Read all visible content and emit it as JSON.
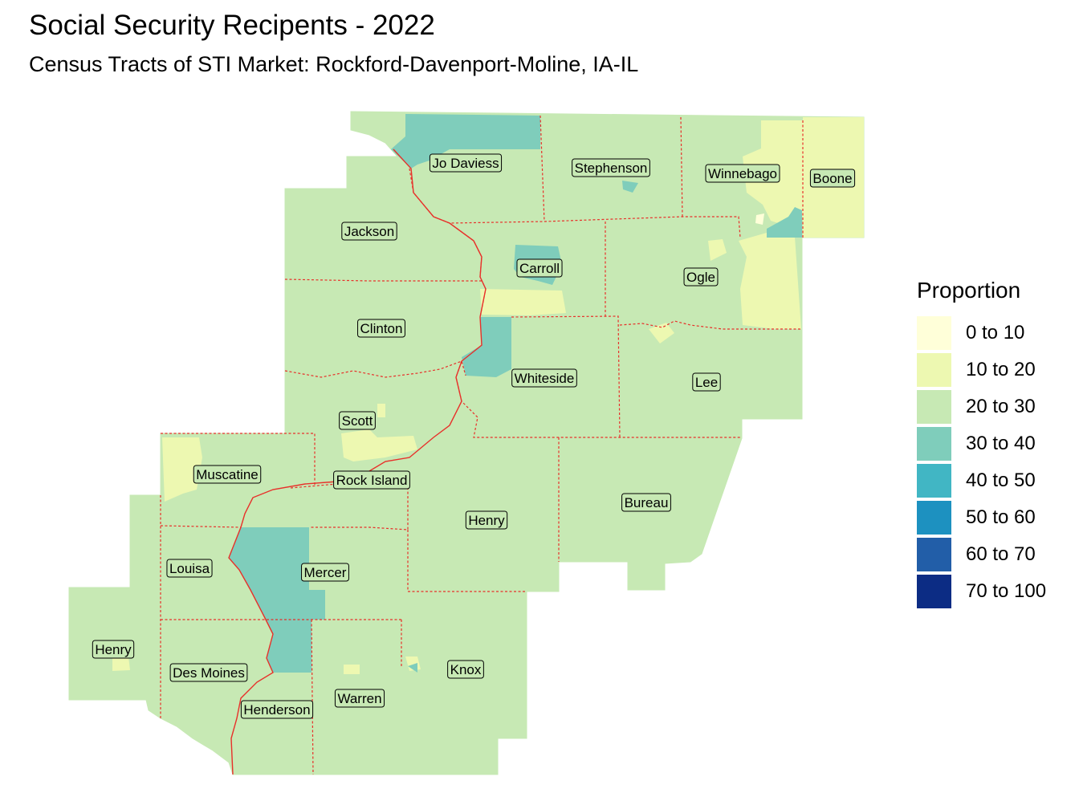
{
  "title": "Social Security Recipents - 2022",
  "subtitle": "Census Tracts of STI Market: Rockford-Davenport-Moline, IA-IL",
  "legend": {
    "title": "Proportion",
    "items": [
      {
        "label": "0 to 10",
        "color": "#ffffd9"
      },
      {
        "label": "10 to 20",
        "color": "#edf8b1"
      },
      {
        "label": "20 to 30",
        "color": "#c7e9b4"
      },
      {
        "label": "30 to 40",
        "color": "#7fcdbb"
      },
      {
        "label": "40 to 50",
        "color": "#41b6c4"
      },
      {
        "label": "50 to 60",
        "color": "#1d91c0"
      },
      {
        "label": "60 to 70",
        "color": "#225ea8"
      },
      {
        "label": "70 to 100",
        "color": "#0c2c84"
      }
    ]
  },
  "colors": {
    "county_border": "#e8302a",
    "label_box_fill": "#c7e9b4",
    "label_box_border": "#000000"
  },
  "counties": [
    {
      "name": "Jo Daviess",
      "class": "20 to 30"
    },
    {
      "name": "Stephenson",
      "class": "20 to 30"
    },
    {
      "name": "Winnebago",
      "class": "20 to 30"
    },
    {
      "name": "Boone",
      "class": "10 to 20"
    },
    {
      "name": "Jackson",
      "class": "20 to 30"
    },
    {
      "name": "Carroll",
      "class": "20 to 30"
    },
    {
      "name": "Ogle",
      "class": "20 to 30"
    },
    {
      "name": "Clinton",
      "class": "20 to 30"
    },
    {
      "name": "Whiteside",
      "class": "20 to 30"
    },
    {
      "name": "Lee",
      "class": "20 to 30"
    },
    {
      "name": "Scott",
      "class": "20 to 30"
    },
    {
      "name": "Muscatine",
      "class": "20 to 30"
    },
    {
      "name": "Rock Island",
      "class": "20 to 30"
    },
    {
      "name": "Henry",
      "class": "20 to 30"
    },
    {
      "name": "Bureau",
      "class": "20 to 30"
    },
    {
      "name": "Louisa",
      "class": "20 to 30"
    },
    {
      "name": "Mercer",
      "class": "20 to 30"
    },
    {
      "name": "Henry",
      "class": "20 to 30"
    },
    {
      "name": "Des Moines",
      "class": "20 to 30"
    },
    {
      "name": "Henderson",
      "class": "20 to 30"
    },
    {
      "name": "Warren",
      "class": "20 to 30"
    },
    {
      "name": "Knox",
      "class": "20 to 30"
    }
  ]
}
